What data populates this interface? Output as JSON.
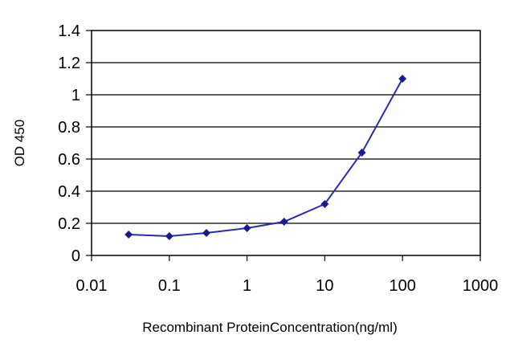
{
  "chart_data": {
    "type": "line",
    "title": "",
    "xlabel": "Recombinant ProteinConcentration(ng/ml)",
    "ylabel": "OD 450",
    "xscale": "log",
    "xlim": [
      0.01,
      1000
    ],
    "ylim": [
      0,
      1.4
    ],
    "x_ticks": [
      "0.01",
      "0.1",
      "1",
      "10",
      "100",
      "1000"
    ],
    "y_ticks": [
      "0",
      "0.2",
      "0.4",
      "0.6",
      "0.8",
      "1",
      "1.2",
      "1.4"
    ],
    "grid": "horizontal",
    "legend": "none",
    "series": [
      {
        "x": [
          0.03,
          0.1,
          0.3,
          1,
          3,
          10,
          30,
          100
        ],
        "y": [
          0.13,
          0.12,
          0.14,
          0.17,
          0.21,
          0.32,
          0.64,
          1.1
        ]
      }
    ],
    "colors": {
      "line": "#2b2bb0",
      "marker": "#1a1a8c",
      "grid": "#000000",
      "frame": "#000000"
    }
  }
}
